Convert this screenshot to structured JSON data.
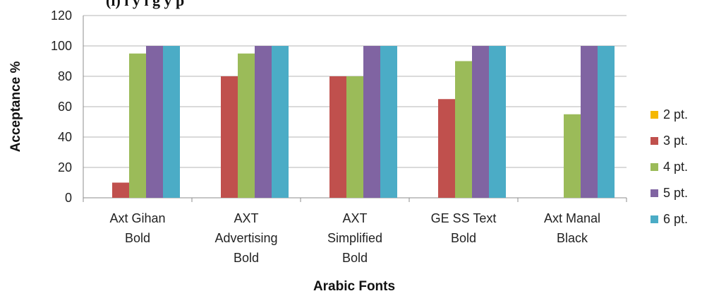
{
  "chart_data": {
    "type": "bar",
    "title": "(ı)           ı   y     ı   g     y          p",
    "xlabel": "Arabic Fonts",
    "ylabel": "Acceptance %",
    "ylim": [
      0,
      120
    ],
    "yticks": [
      0,
      20,
      40,
      60,
      80,
      100,
      120
    ],
    "grid": true,
    "legend_position": "right",
    "categories": [
      [
        "Axt Gihan",
        "Bold"
      ],
      [
        "AXT",
        "Advertising",
        "Bold"
      ],
      [
        "AXT",
        "Simplified",
        "Bold"
      ],
      [
        "GE SS Text",
        "Bold"
      ],
      [
        "Axt Manal",
        "Black"
      ]
    ],
    "series": [
      {
        "name": "2 pt.",
        "color": "#f5b800",
        "values": [
          0,
          0,
          0,
          0,
          0
        ]
      },
      {
        "name": "3 pt.",
        "color": "#c0504d",
        "values": [
          10,
          80,
          80,
          65,
          0
        ]
      },
      {
        "name": "4 pt.",
        "color": "#9bbb59",
        "values": [
          95,
          95,
          80,
          90,
          55
        ]
      },
      {
        "name": "5 pt.",
        "color": "#8064a2",
        "values": [
          100,
          100,
          100,
          100,
          100
        ]
      },
      {
        "name": "6 pt.",
        "color": "#4bacc6",
        "values": [
          100,
          100,
          100,
          100,
          100
        ]
      }
    ]
  }
}
